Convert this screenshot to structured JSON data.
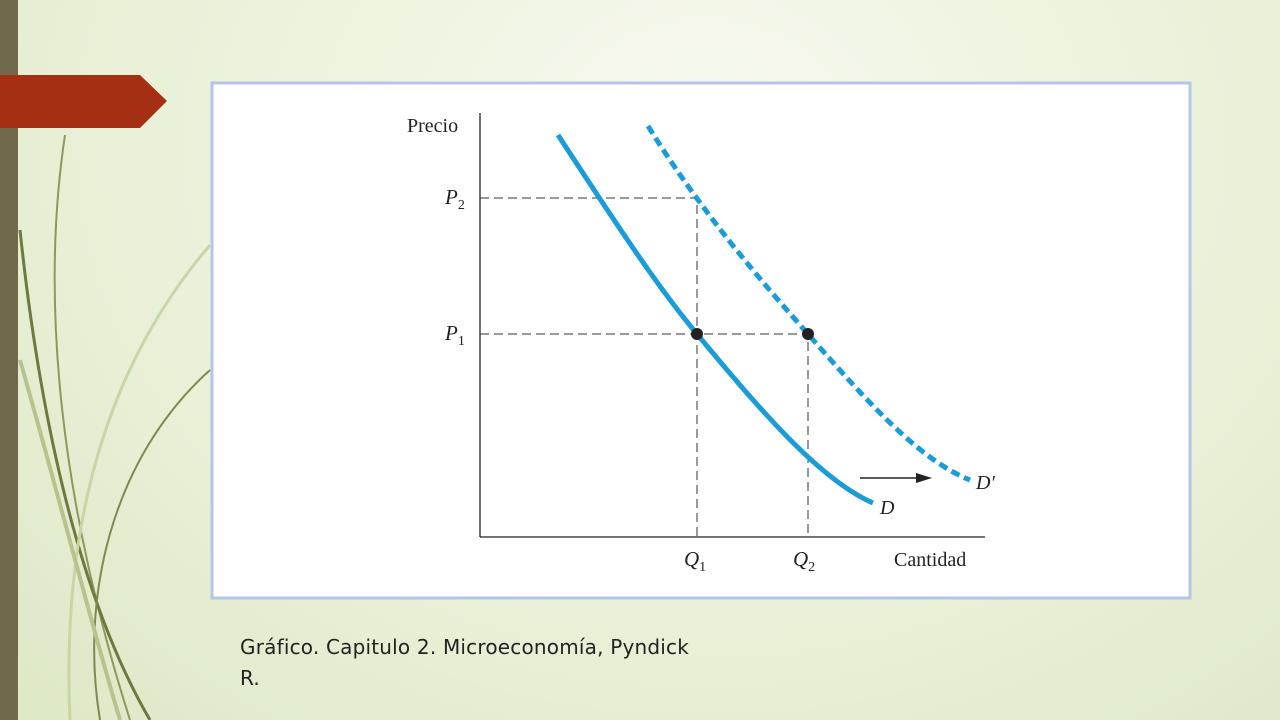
{
  "diagram": {
    "y_axis_label": "Precio",
    "x_axis_label": "Cantidad",
    "y_ticks": [
      {
        "letter": "P",
        "sub": "2"
      },
      {
        "letter": "P",
        "sub": "1"
      }
    ],
    "x_ticks": [
      {
        "letter": "Q",
        "sub": "1"
      },
      {
        "letter": "Q",
        "sub": "2"
      }
    ],
    "curves": [
      {
        "label": "D"
      },
      {
        "label": "D′"
      }
    ]
  },
  "caption": "Gráfico. Capitulo 2. Microeconomía, Pyndick R."
}
